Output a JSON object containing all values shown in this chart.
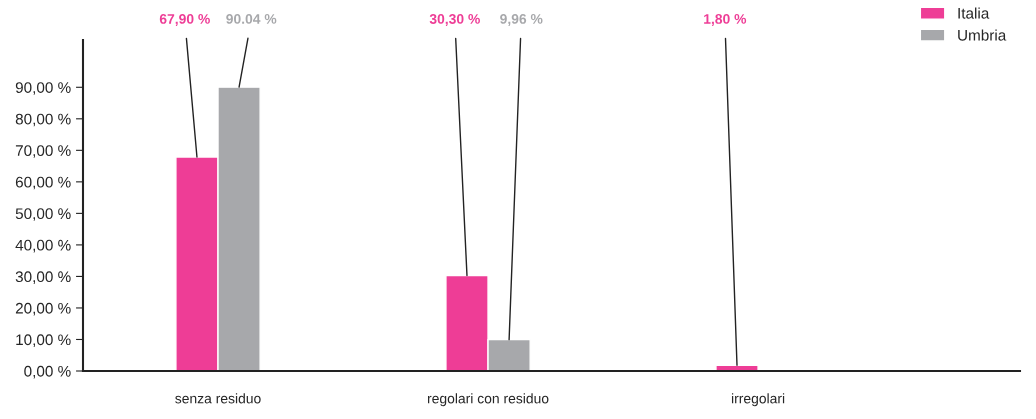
{
  "chart_data": {
    "type": "bar",
    "categories": [
      "senza residuo",
      "regolari con residuo",
      "irregolari"
    ],
    "series": [
      {
        "name": "Italia",
        "color": "#ee3d96",
        "values": [
          67.9,
          30.3,
          1.8
        ],
        "value_labels": [
          "67,90 %",
          "30,30 %",
          "1,80 %"
        ]
      },
      {
        "name": "Umbria",
        "color": "#a7a8ab",
        "values": [
          90.04,
          9.96,
          null
        ],
        "value_labels": [
          "90.04 %",
          "9,96 %",
          null
        ]
      }
    ],
    "ylim": [
      0,
      105
    ],
    "yticks": [
      {
        "value": 0,
        "label": "0,00 %"
      },
      {
        "value": 10,
        "label": "10,00 %"
      },
      {
        "value": 20,
        "label": "20,00 %"
      },
      {
        "value": 30,
        "label": "30,00 %"
      },
      {
        "value": 40,
        "label": "40,00 %"
      },
      {
        "value": 50,
        "label": "50,00 %"
      },
      {
        "value": 60,
        "label": "60,00 %"
      },
      {
        "value": 70,
        "label": "70,00 %"
      },
      {
        "value": 80,
        "label": "80,00 %"
      },
      {
        "value": 90,
        "label": "90,00 %"
      }
    ],
    "grid": false,
    "legend": "top right"
  }
}
